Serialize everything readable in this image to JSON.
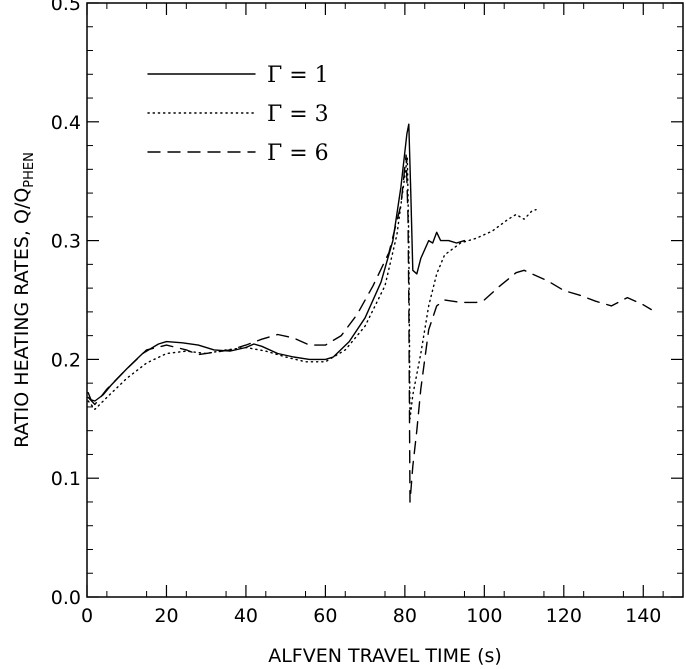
{
  "chart_data": {
    "type": "line",
    "title": "",
    "xlabel": "ALFVEN TRAVEL TIME (s)",
    "ylabel_main": "RATIO HEATING RATES, Q/Q",
    "ylabel_sub": "PHEN",
    "xlim": [
      0,
      150
    ],
    "ylim": [
      0.0,
      0.5
    ],
    "xticks": [
      "0",
      "20",
      "40",
      "60",
      "80",
      "100",
      "120",
      "140"
    ],
    "yticks": [
      "0.0",
      "0.1",
      "0.2",
      "0.3",
      "0.4",
      "0.5"
    ],
    "grid": false,
    "legend_position": "top-left",
    "series": [
      {
        "name": "Γ = 1",
        "style": "solid",
        "points": [
          [
            0.3,
            0.172
          ],
          [
            1,
            0.166
          ],
          [
            2,
            0.165
          ],
          [
            4,
            0.17
          ],
          [
            6,
            0.178
          ],
          [
            10,
            0.192
          ],
          [
            14,
            0.205
          ],
          [
            18,
            0.213
          ],
          [
            20,
            0.215
          ],
          [
            24,
            0.214
          ],
          [
            28,
            0.212
          ],
          [
            32,
            0.208
          ],
          [
            36,
            0.207
          ],
          [
            40,
            0.21
          ],
          [
            42,
            0.213
          ],
          [
            44,
            0.211
          ],
          [
            48,
            0.205
          ],
          [
            52,
            0.202
          ],
          [
            56,
            0.2
          ],
          [
            60,
            0.2
          ],
          [
            62,
            0.202
          ],
          [
            66,
            0.215
          ],
          [
            70,
            0.235
          ],
          [
            74,
            0.265
          ],
          [
            77,
            0.3
          ],
          [
            79,
            0.345
          ],
          [
            80.5,
            0.39
          ],
          [
            81,
            0.398
          ],
          [
            81.5,
            0.34
          ],
          [
            82,
            0.275
          ],
          [
            83,
            0.272
          ],
          [
            84,
            0.285
          ],
          [
            86,
            0.3
          ],
          [
            87,
            0.298
          ],
          [
            88,
            0.307
          ],
          [
            89,
            0.3
          ],
          [
            91,
            0.3
          ],
          [
            93,
            0.298
          ],
          [
            95,
            0.3
          ]
        ]
      },
      {
        "name": "Γ = 3",
        "style": "dotted",
        "points": [
          [
            0.3,
            0.165
          ],
          [
            2,
            0.158
          ],
          [
            5,
            0.168
          ],
          [
            10,
            0.184
          ],
          [
            15,
            0.197
          ],
          [
            20,
            0.205
          ],
          [
            25,
            0.207
          ],
          [
            30,
            0.205
          ],
          [
            35,
            0.208
          ],
          [
            40,
            0.21
          ],
          [
            45,
            0.207
          ],
          [
            50,
            0.202
          ],
          [
            55,
            0.198
          ],
          [
            60,
            0.198
          ],
          [
            65,
            0.208
          ],
          [
            70,
            0.228
          ],
          [
            75,
            0.262
          ],
          [
            78,
            0.305
          ],
          [
            80,
            0.355
          ],
          [
            80.6,
            0.37
          ],
          [
            81,
            0.3
          ],
          [
            81.3,
            0.15
          ],
          [
            82,
            0.17
          ],
          [
            84,
            0.205
          ],
          [
            86,
            0.245
          ],
          [
            88,
            0.272
          ],
          [
            90,
            0.288
          ],
          [
            94,
            0.298
          ],
          [
            98,
            0.302
          ],
          [
            102,
            0.308
          ],
          [
            106,
            0.318
          ],
          [
            108,
            0.322
          ],
          [
            110,
            0.318
          ],
          [
            112,
            0.325
          ],
          [
            113,
            0.326
          ]
        ]
      },
      {
        "name": "Γ = 6",
        "style": "dashed",
        "points": [
          [
            0.3,
            0.168
          ],
          [
            2,
            0.162
          ],
          [
            5,
            0.175
          ],
          [
            10,
            0.192
          ],
          [
            15,
            0.208
          ],
          [
            20,
            0.212
          ],
          [
            25,
            0.208
          ],
          [
            28,
            0.204
          ],
          [
            32,
            0.206
          ],
          [
            36,
            0.208
          ],
          [
            40,
            0.212
          ],
          [
            44,
            0.217
          ],
          [
            48,
            0.221
          ],
          [
            52,
            0.218
          ],
          [
            56,
            0.212
          ],
          [
            60,
            0.212
          ],
          [
            64,
            0.22
          ],
          [
            68,
            0.238
          ],
          [
            72,
            0.262
          ],
          [
            76,
            0.29
          ],
          [
            79,
            0.33
          ],
          [
            80.3,
            0.372
          ],
          [
            80.8,
            0.32
          ],
          [
            81,
            0.25
          ],
          [
            81.3,
            0.08
          ],
          [
            82,
            0.11
          ],
          [
            83,
            0.14
          ],
          [
            84,
            0.175
          ],
          [
            86,
            0.225
          ],
          [
            88,
            0.245
          ],
          [
            90,
            0.25
          ],
          [
            94,
            0.248
          ],
          [
            98,
            0.248
          ],
          [
            100,
            0.25
          ],
          [
            104,
            0.262
          ],
          [
            108,
            0.273
          ],
          [
            110,
            0.275
          ],
          [
            112,
            0.272
          ],
          [
            116,
            0.266
          ],
          [
            120,
            0.258
          ],
          [
            124,
            0.254
          ],
          [
            128,
            0.249
          ],
          [
            132,
            0.245
          ],
          [
            136,
            0.252
          ],
          [
            140,
            0.246
          ],
          [
            142,
            0.242
          ]
        ]
      }
    ]
  }
}
